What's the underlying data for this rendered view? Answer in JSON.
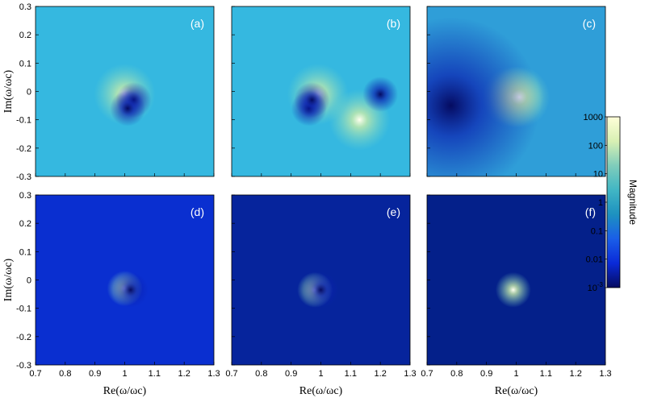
{
  "chart_data": {
    "type": "heatmap",
    "xlabel": "Re(ω/ωc)",
    "ylabel": "Im(ω/ωc)",
    "xlim": [
      0.7,
      1.3
    ],
    "ylim": [
      -0.3,
      0.3
    ],
    "x_ticks": [
      "0.7",
      "0.8",
      "0.9",
      "1",
      "1.1",
      "1.2",
      "1.3"
    ],
    "y_ticks": [
      "0.3",
      "0.2",
      "0.1",
      "0",
      "-0.1",
      "-0.2",
      "-0.3"
    ],
    "panels": [
      {
        "label": "(a)",
        "background": "#35b8e0",
        "features": [
          {
            "kind": "peak",
            "re": 1.0,
            "im": -0.01
          },
          {
            "kind": "zero",
            "re": 1.03,
            "im": -0.03
          },
          {
            "kind": "zero",
            "re": 1.01,
            "im": -0.06
          }
        ]
      },
      {
        "label": "(b)",
        "background": "#35b8e0",
        "features": [
          {
            "kind": "peak",
            "re": 0.99,
            "im": -0.01
          },
          {
            "kind": "peak",
            "re": 1.13,
            "im": -0.1
          },
          {
            "kind": "zero",
            "re": 0.96,
            "im": -0.06
          },
          {
            "kind": "zero",
            "re": 0.97,
            "im": -0.03
          },
          {
            "kind": "zero",
            "re": 1.2,
            "im": -0.01
          }
        ]
      },
      {
        "label": "(c)",
        "background": "#2f9ed8",
        "features": [
          {
            "kind": "peak",
            "re": 0.99,
            "im": -0.02
          },
          {
            "kind": "peak",
            "re": 1.01,
            "im": -0.02
          },
          {
            "kind": "zero",
            "re": 0.78,
            "im": -0.05
          }
        ]
      },
      {
        "label": "(d)",
        "background": "#0a2fd0",
        "features": [
          {
            "kind": "peak",
            "re": 1.0,
            "im": -0.03
          },
          {
            "kind": "zero",
            "re": 1.02,
            "im": -0.035
          }
        ]
      },
      {
        "label": "(e)",
        "background": "#06249c",
        "features": [
          {
            "kind": "peak",
            "re": 0.98,
            "im": -0.035
          },
          {
            "kind": "zero",
            "re": 1.0,
            "im": -0.035
          }
        ]
      },
      {
        "label": "(f)",
        "background": "#04208a",
        "features": [
          {
            "kind": "peak",
            "re": 0.99,
            "im": -0.035
          }
        ]
      }
    ],
    "colorbar": {
      "label": "Magnitude",
      "scale": "log",
      "range": [
        0.001,
        1000
      ],
      "ticks": [
        "1000",
        "100",
        "10",
        "1",
        "0.1",
        "0.01"
      ],
      "bottom_tick_base": "10",
      "bottom_tick_exp": "-3",
      "colors": [
        "#ffffd9",
        "#d8f0b3",
        "#7fcdbb",
        "#41b6c4",
        "#1d91c0",
        "#1a5ee8",
        "#0a2ad8",
        "#050b60"
      ]
    }
  }
}
